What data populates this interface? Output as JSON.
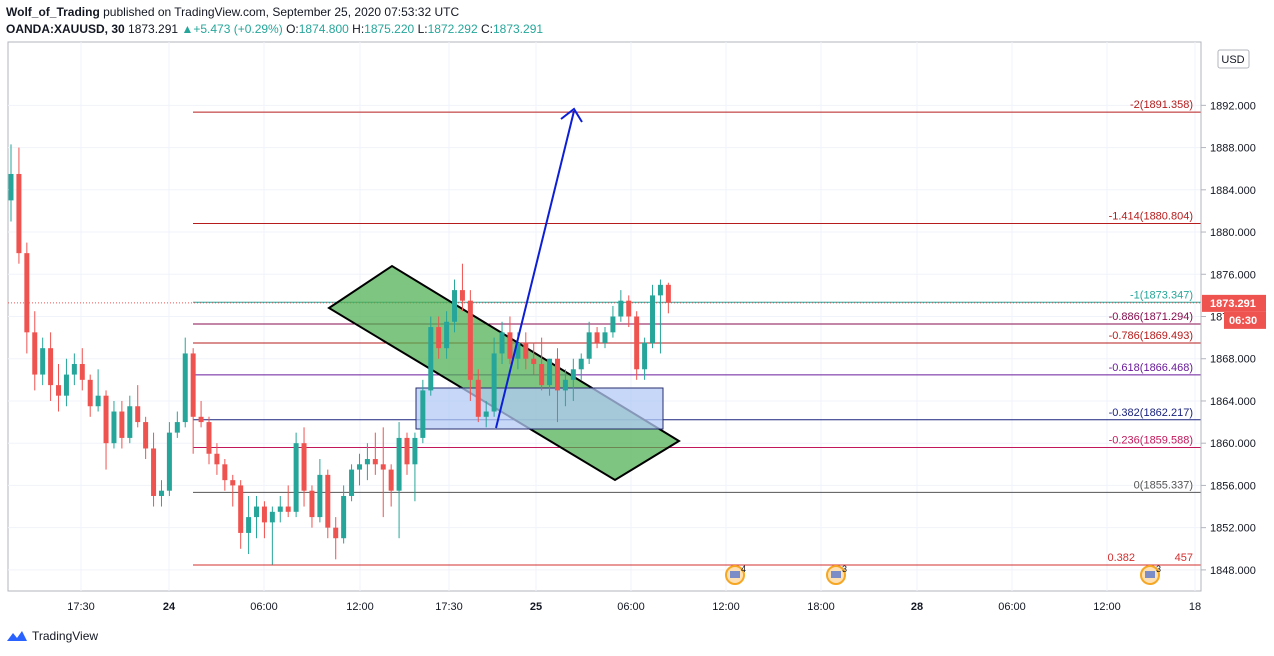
{
  "header": {
    "author": "Wolf_of_Trading",
    "published": "published on TradingView.com, September 25, 2020 07:53:32 UTC",
    "symbol": "OANDA:XAUUSD, 30",
    "last": "1873.291",
    "arrow": "▲",
    "change": "+5.473 (+0.29%)",
    "o_label": "O:",
    "o_value": "1874.800",
    "h_label": "H:",
    "h_value": "1875.220",
    "l_label": "L:",
    "l_value": "1872.292",
    "c_label": "C:",
    "c_value": "1873.291"
  },
  "currency": "USD",
  "footer": {
    "brand": "TradingView",
    "logo_icon": "tradingview-logo-icon"
  },
  "colors": {
    "up": "#26a69a",
    "down": "#ef5350",
    "price_badge": "#ef5350"
  },
  "chart_data": {
    "type": "candlestick",
    "ylim": [
      1846.0,
      1898.0
    ],
    "price_ticks": [
      "1892.000",
      "1888.000",
      "1884.000",
      "1880.000",
      "1876.000",
      "1872.000",
      "1868.000",
      "1864.000",
      "1860.000",
      "1856.000",
      "1852.000",
      "1848.000"
    ],
    "time_ticks": [
      "17:30",
      "24",
      "06:00",
      "12:00",
      "17:30",
      "25",
      "06:00",
      "12:00",
      "18:00",
      "28",
      "06:00",
      "12:00",
      "18"
    ],
    "last_price": {
      "value": 1873.291,
      "label": "1873.291",
      "countdown": "06:30"
    },
    "fib_levels": [
      {
        "label": "-2(1891.358)",
        "value": 1891.358,
        "color": "#b71c1c"
      },
      {
        "label": "-1.414(1880.804)",
        "value": 1880.804,
        "color": "#b71c1c"
      },
      {
        "label": "-1(1873.347)",
        "value": 1873.347,
        "color": "#26a69a"
      },
      {
        "label": "-0.886(1871.294)",
        "value": 1871.294,
        "color": "#880e4f"
      },
      {
        "label": "-0.786(1869.493)",
        "value": 1869.493,
        "color": "#b71c1c"
      },
      {
        "label": "-0.618(1866.468)",
        "value": 1866.468,
        "color": "#6a1b9a"
      },
      {
        "label": "-0.382(1862.217)",
        "value": 1862.217,
        "color": "#1a237e"
      },
      {
        "label": "-0.236(1859.588)",
        "value": 1859.588,
        "color": "#c2185b"
      },
      {
        "label": "0(1855.337)",
        "value": 1855.337,
        "color": "#555555"
      },
      {
        "label": "0.382",
        "value": 1848.457,
        "color": "#d32f2f"
      }
    ],
    "fib_partial_label_tail": "457",
    "events": [
      {
        "count": "4"
      },
      {
        "count": "3"
      },
      {
        "count": "3"
      }
    ],
    "candles": [
      {
        "o": 1883.0,
        "h": 1888.3,
        "l": 1881.0,
        "c": 1885.5
      },
      {
        "o": 1885.5,
        "h": 1888.0,
        "l": 1877.0,
        "c": 1878.0
      },
      {
        "o": 1878.0,
        "h": 1879.0,
        "l": 1868.5,
        "c": 1870.5
      },
      {
        "o": 1870.5,
        "h": 1872.5,
        "l": 1865.0,
        "c": 1866.5
      },
      {
        "o": 1866.5,
        "h": 1870.0,
        "l": 1865.5,
        "c": 1869.0
      },
      {
        "o": 1869.0,
        "h": 1870.5,
        "l": 1864.0,
        "c": 1865.5
      },
      {
        "o": 1865.5,
        "h": 1867.5,
        "l": 1863.0,
        "c": 1864.5
      },
      {
        "o": 1864.5,
        "h": 1868.0,
        "l": 1863.5,
        "c": 1866.5
      },
      {
        "o": 1866.5,
        "h": 1868.5,
        "l": 1865.5,
        "c": 1867.5
      },
      {
        "o": 1867.5,
        "h": 1869.0,
        "l": 1865.0,
        "c": 1866.0
      },
      {
        "o": 1866.0,
        "h": 1866.5,
        "l": 1862.5,
        "c": 1863.5
      },
      {
        "o": 1863.5,
        "h": 1867.0,
        "l": 1863.0,
        "c": 1864.5
      },
      {
        "o": 1864.5,
        "h": 1865.0,
        "l": 1857.5,
        "c": 1860.0
      },
      {
        "o": 1860.0,
        "h": 1864.0,
        "l": 1859.5,
        "c": 1863.0
      },
      {
        "o": 1863.0,
        "h": 1864.0,
        "l": 1859.5,
        "c": 1860.5
      },
      {
        "o": 1860.5,
        "h": 1864.5,
        "l": 1860.0,
        "c": 1863.5
      },
      {
        "o": 1863.5,
        "h": 1865.5,
        "l": 1861.5,
        "c": 1862.0
      },
      {
        "o": 1862.0,
        "h": 1862.5,
        "l": 1858.5,
        "c": 1859.5
      },
      {
        "o": 1859.5,
        "h": 1861.0,
        "l": 1854.0,
        "c": 1855.0
      },
      {
        "o": 1855.0,
        "h": 1856.5,
        "l": 1854.0,
        "c": 1855.5
      },
      {
        "o": 1855.5,
        "h": 1862.0,
        "l": 1855.0,
        "c": 1861.0
      },
      {
        "o": 1861.0,
        "h": 1863.0,
        "l": 1860.5,
        "c": 1862.0
      },
      {
        "o": 1862.0,
        "h": 1870.0,
        "l": 1861.5,
        "c": 1868.5
      },
      {
        "o": 1868.5,
        "h": 1869.0,
        "l": 1859.0,
        "c": 1862.5
      },
      {
        "o": 1862.5,
        "h": 1864.0,
        "l": 1861.5,
        "c": 1862.0
      },
      {
        "o": 1862.0,
        "h": 1862.5,
        "l": 1858.0,
        "c": 1859.0
      },
      {
        "o": 1859.0,
        "h": 1860.0,
        "l": 1857.0,
        "c": 1858.0
      },
      {
        "o": 1858.0,
        "h": 1858.5,
        "l": 1855.5,
        "c": 1856.5
      },
      {
        "o": 1856.5,
        "h": 1857.0,
        "l": 1854.0,
        "c": 1856.0
      },
      {
        "o": 1856.0,
        "h": 1856.5,
        "l": 1850.0,
        "c": 1851.5
      },
      {
        "o": 1851.5,
        "h": 1855.0,
        "l": 1849.5,
        "c": 1853.0
      },
      {
        "o": 1853.0,
        "h": 1855.0,
        "l": 1851.0,
        "c": 1854.0
      },
      {
        "o": 1854.0,
        "h": 1854.5,
        "l": 1851.0,
        "c": 1852.5
      },
      {
        "o": 1852.5,
        "h": 1854.0,
        "l": 1848.5,
        "c": 1853.5
      },
      {
        "o": 1853.5,
        "h": 1855.0,
        "l": 1852.5,
        "c": 1854.0
      },
      {
        "o": 1854.0,
        "h": 1856.0,
        "l": 1853.0,
        "c": 1853.5
      },
      {
        "o": 1853.5,
        "h": 1861.0,
        "l": 1853.0,
        "c": 1860.0
      },
      {
        "o": 1860.0,
        "h": 1861.5,
        "l": 1854.0,
        "c": 1855.5
      },
      {
        "o": 1855.5,
        "h": 1856.0,
        "l": 1852.0,
        "c": 1853.0
      },
      {
        "o": 1853.0,
        "h": 1858.5,
        "l": 1852.5,
        "c": 1857.0
      },
      {
        "o": 1857.0,
        "h": 1857.5,
        "l": 1851.0,
        "c": 1852.0
      },
      {
        "o": 1852.0,
        "h": 1853.0,
        "l": 1849.0,
        "c": 1851.0
      },
      {
        "o": 1851.0,
        "h": 1856.0,
        "l": 1850.5,
        "c": 1855.0
      },
      {
        "o": 1855.0,
        "h": 1858.0,
        "l": 1854.5,
        "c": 1857.5
      },
      {
        "o": 1857.5,
        "h": 1859.0,
        "l": 1856.0,
        "c": 1858.0
      },
      {
        "o": 1858.0,
        "h": 1860.0,
        "l": 1856.5,
        "c": 1858.5
      },
      {
        "o": 1858.5,
        "h": 1861.0,
        "l": 1857.0,
        "c": 1858.0
      },
      {
        "o": 1858.0,
        "h": 1861.5,
        "l": 1853.0,
        "c": 1857.5
      },
      {
        "o": 1857.5,
        "h": 1858.0,
        "l": 1854.0,
        "c": 1855.5
      },
      {
        "o": 1855.5,
        "h": 1862.0,
        "l": 1851.0,
        "c": 1860.5
      },
      {
        "o": 1860.5,
        "h": 1861.0,
        "l": 1857.0,
        "c": 1858.0
      },
      {
        "o": 1858.0,
        "h": 1861.0,
        "l": 1854.5,
        "c": 1860.5
      },
      {
        "o": 1860.5,
        "h": 1866.0,
        "l": 1860.0,
        "c": 1865.0
      },
      {
        "o": 1865.0,
        "h": 1872.0,
        "l": 1864.5,
        "c": 1871.0
      },
      {
        "o": 1871.0,
        "h": 1872.0,
        "l": 1868.0,
        "c": 1869.0
      },
      {
        "o": 1869.0,
        "h": 1872.5,
        "l": 1868.0,
        "c": 1871.5
      },
      {
        "o": 1871.5,
        "h": 1875.5,
        "l": 1870.5,
        "c": 1874.5
      },
      {
        "o": 1874.5,
        "h": 1877.0,
        "l": 1872.5,
        "c": 1873.5
      },
      {
        "o": 1873.5,
        "h": 1874.5,
        "l": 1864.0,
        "c": 1866.0
      },
      {
        "o": 1866.0,
        "h": 1867.0,
        "l": 1862.0,
        "c": 1862.5
      },
      {
        "o": 1862.5,
        "h": 1864.0,
        "l": 1861.5,
        "c": 1863.0
      },
      {
        "o": 1863.0,
        "h": 1870.0,
        "l": 1862.5,
        "c": 1868.5
      },
      {
        "o": 1868.5,
        "h": 1871.5,
        "l": 1867.5,
        "c": 1870.5
      },
      {
        "o": 1870.5,
        "h": 1872.0,
        "l": 1867.5,
        "c": 1868.0
      },
      {
        "o": 1868.0,
        "h": 1870.5,
        "l": 1867.0,
        "c": 1869.5
      },
      {
        "o": 1869.5,
        "h": 1870.5,
        "l": 1867.0,
        "c": 1868.0
      },
      {
        "o": 1868.0,
        "h": 1869.5,
        "l": 1866.5,
        "c": 1867.5
      },
      {
        "o": 1867.5,
        "h": 1870.0,
        "l": 1865.0,
        "c": 1865.5
      },
      {
        "o": 1865.5,
        "h": 1868.0,
        "l": 1864.5,
        "c": 1868.0
      },
      {
        "o": 1868.0,
        "h": 1869.0,
        "l": 1862.0,
        "c": 1865.0
      },
      {
        "o": 1865.0,
        "h": 1867.0,
        "l": 1863.5,
        "c": 1866.0
      },
      {
        "o": 1866.0,
        "h": 1868.0,
        "l": 1864.0,
        "c": 1867.0
      },
      {
        "o": 1867.0,
        "h": 1868.5,
        "l": 1866.0,
        "c": 1868.0
      },
      {
        "o": 1868.0,
        "h": 1871.5,
        "l": 1867.5,
        "c": 1870.5
      },
      {
        "o": 1870.5,
        "h": 1871.0,
        "l": 1869.0,
        "c": 1869.5
      },
      {
        "o": 1869.5,
        "h": 1871.0,
        "l": 1869.0,
        "c": 1870.5
      },
      {
        "o": 1870.5,
        "h": 1873.0,
        "l": 1870.0,
        "c": 1872.0
      },
      {
        "o": 1872.0,
        "h": 1874.5,
        "l": 1871.5,
        "c": 1873.5
      },
      {
        "o": 1873.5,
        "h": 1874.0,
        "l": 1871.0,
        "c": 1872.0
      },
      {
        "o": 1872.0,
        "h": 1872.5,
        "l": 1866.0,
        "c": 1867.0
      },
      {
        "o": 1867.0,
        "h": 1870.0,
        "l": 1866.0,
        "c": 1869.5
      },
      {
        "o": 1869.5,
        "h": 1875.0,
        "l": 1869.0,
        "c": 1874.0
      },
      {
        "o": 1874.0,
        "h": 1875.5,
        "l": 1868.5,
        "c": 1875.0
      },
      {
        "o": 1875.0,
        "h": 1875.2,
        "l": 1872.3,
        "c": 1873.3
      }
    ]
  }
}
